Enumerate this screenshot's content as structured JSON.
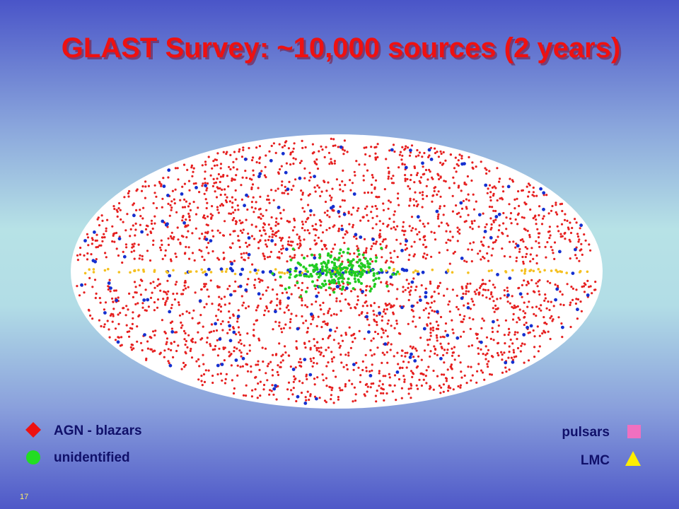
{
  "title": "GLAST Survey: ~10,000 sources  (2 years)",
  "legend": {
    "left": [
      "AGN - blazars",
      "unidentified"
    ],
    "right": [
      "pulsars",
      "LMC"
    ]
  },
  "slide_number": "17"
}
